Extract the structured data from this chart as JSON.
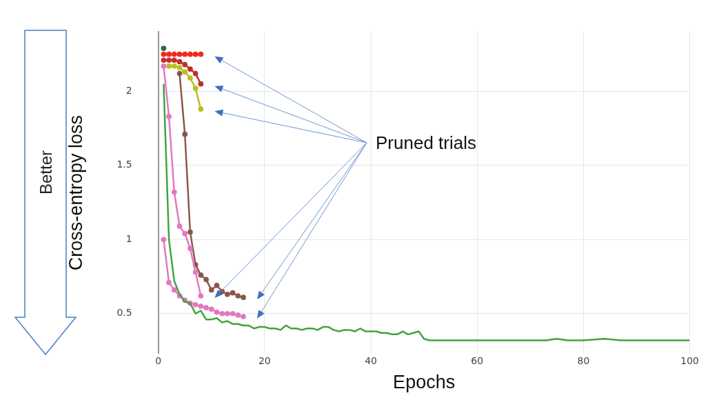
{
  "chart_data": {
    "type": "line",
    "xlabel": "Epochs",
    "ylabel": "Cross-entropy loss",
    "annotations": [
      "Pruned trials",
      "Better"
    ],
    "xlim": [
      0,
      100
    ],
    "xticks": [
      0,
      20,
      40,
      60,
      80,
      100
    ],
    "ylim": [
      0.23,
      2.4
    ],
    "yticks": [
      0.5,
      1,
      1.5,
      2
    ],
    "grid": true,
    "legend": false,
    "series": [
      {
        "color": "#3fa33f",
        "marker": "none",
        "x": [
          1,
          2,
          3,
          4,
          5,
          6,
          7,
          8,
          9,
          10,
          11,
          12,
          13,
          14,
          15,
          16,
          17,
          18,
          19,
          20,
          21,
          22,
          23,
          24,
          25,
          26,
          27,
          28,
          29,
          30,
          31,
          32,
          33,
          34,
          35,
          36,
          37,
          38,
          39,
          40,
          41,
          42,
          43,
          44,
          45,
          46,
          47,
          48,
          49,
          50,
          51,
          52,
          55,
          58,
          61,
          64,
          67,
          70,
          73,
          75,
          77,
          80,
          84,
          87,
          90,
          93,
          96,
          100
        ],
        "values": [
          2.05,
          1.0,
          0.72,
          0.63,
          0.58,
          0.57,
          0.5,
          0.52,
          0.46,
          0.46,
          0.47,
          0.44,
          0.45,
          0.43,
          0.43,
          0.42,
          0.42,
          0.4,
          0.41,
          0.41,
          0.4,
          0.4,
          0.39,
          0.42,
          0.4,
          0.4,
          0.39,
          0.4,
          0.4,
          0.39,
          0.41,
          0.41,
          0.39,
          0.38,
          0.39,
          0.39,
          0.38,
          0.4,
          0.38,
          0.38,
          0.38,
          0.37,
          0.37,
          0.36,
          0.36,
          0.38,
          0.36,
          0.37,
          0.38,
          0.33,
          0.32,
          0.32,
          0.32,
          0.32,
          0.32,
          0.32,
          0.32,
          0.32,
          0.32,
          0.33,
          0.32,
          0.32,
          0.33,
          0.32,
          0.32,
          0.32,
          0.32,
          0.32
        ]
      },
      {
        "color": "#2f6b3b",
        "marker": "circle",
        "x": [
          1
        ],
        "values": [
          2.29
        ]
      },
      {
        "color": "#ee2a1e",
        "marker": "circle",
        "x": [
          1,
          2,
          3,
          4,
          5,
          6,
          7,
          8
        ],
        "values": [
          2.25,
          2.25,
          2.25,
          2.25,
          2.25,
          2.25,
          2.25,
          2.25
        ]
      },
      {
        "color": "#c0302a",
        "marker": "circle",
        "x": [
          1,
          2,
          3,
          4,
          5,
          6,
          7,
          8
        ],
        "values": [
          2.21,
          2.21,
          2.21,
          2.2,
          2.18,
          2.15,
          2.12,
          2.05
        ]
      },
      {
        "color": "#bcbd22",
        "marker": "circle",
        "x": [
          2,
          3,
          4,
          5,
          6,
          7,
          8
        ],
        "values": [
          2.17,
          2.17,
          2.16,
          2.13,
          2.09,
          2.02,
          1.88
        ]
      },
      {
        "color": "#e377c2",
        "marker": "circle",
        "x": [
          1,
          2,
          3,
          4,
          5,
          6,
          7,
          8
        ],
        "values": [
          2.17,
          1.83,
          1.32,
          1.09,
          1.04,
          0.94,
          0.78,
          0.62
        ]
      },
      {
        "color": "#8c564b",
        "marker": "circle",
        "x": [
          4,
          5,
          6,
          7,
          8,
          9,
          10,
          11,
          12,
          13,
          14,
          15,
          16
        ],
        "values": [
          2.12,
          1.71,
          1.05,
          0.83,
          0.76,
          0.73,
          0.66,
          0.69,
          0.65,
          0.63,
          0.64,
          0.62,
          0.61
        ]
      },
      {
        "color": "#e377c2",
        "marker": "circle",
        "x": [
          1,
          2,
          3,
          4,
          5,
          6,
          7,
          8,
          9,
          10,
          11,
          12,
          13,
          14,
          15,
          16
        ],
        "values": [
          1.0,
          0.71,
          0.66,
          0.62,
          0.59,
          0.57,
          0.56,
          0.55,
          0.54,
          0.53,
          0.51,
          0.5,
          0.5,
          0.5,
          0.49,
          0.48
        ]
      }
    ]
  }
}
